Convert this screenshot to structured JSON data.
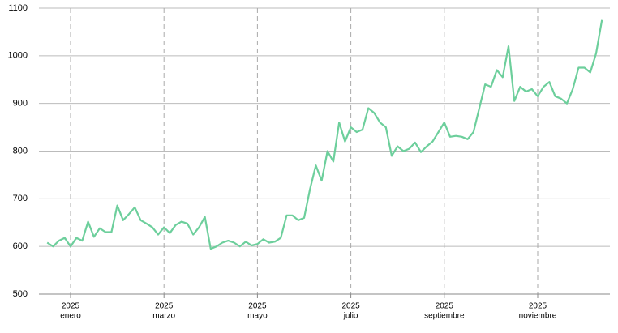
{
  "chart_data": {
    "type": "line",
    "categories": [
      null,
      null,
      null,
      null,
      [
        "2025",
        "enero"
      ],
      null,
      null,
      null,
      null,
      null,
      null,
      null,
      null,
      null,
      null,
      null,
      null,
      null,
      null,
      null,
      [
        "2025",
        "marzo"
      ],
      null,
      null,
      null,
      null,
      null,
      null,
      null,
      null,
      null,
      null,
      null,
      null,
      null,
      null,
      null,
      [
        "2025",
        "mayo"
      ],
      null,
      null,
      null,
      null,
      null,
      null,
      null,
      null,
      null,
      null,
      null,
      null,
      null,
      null,
      null,
      [
        "2025",
        "julio"
      ],
      null,
      null,
      null,
      null,
      null,
      null,
      null,
      null,
      null,
      null,
      null,
      null,
      null,
      null,
      null,
      [
        "2025",
        "septiembre"
      ],
      null,
      null,
      null,
      null,
      null,
      null,
      null,
      null,
      null,
      null,
      null,
      null,
      null,
      null,
      null,
      [
        "2025",
        "noviembre"
      ],
      null,
      null,
      null,
      null,
      null,
      null,
      null,
      null,
      null,
      null,
      null
    ],
    "values": [
      608,
      600,
      612,
      618,
      600,
      618,
      612,
      652,
      620,
      638,
      630,
      630,
      686,
      655,
      668,
      682,
      655,
      648,
      640,
      625,
      640,
      628,
      645,
      652,
      648,
      625,
      640,
      662,
      595,
      600,
      608,
      612,
      608,
      600,
      610,
      602,
      605,
      615,
      608,
      610,
      618,
      665,
      665,
      655,
      660,
      720,
      770,
      738,
      800,
      778,
      860,
      820,
      850,
      840,
      845,
      890,
      880,
      860,
      850,
      790,
      810,
      800,
      805,
      818,
      798,
      810,
      820,
      840,
      860,
      830,
      832,
      830,
      825,
      840,
      890,
      940,
      935,
      970,
      955,
      1020,
      905,
      935,
      925,
      930,
      915,
      935,
      945,
      915,
      910,
      900,
      930,
      975,
      975,
      965,
      1005,
      1075
    ],
    "color": "#6dcf9c",
    "ylim": [
      500,
      1100
    ],
    "yticks": [
      500,
      600,
      700,
      800,
      900,
      1000,
      1100
    ],
    "grid": true
  }
}
